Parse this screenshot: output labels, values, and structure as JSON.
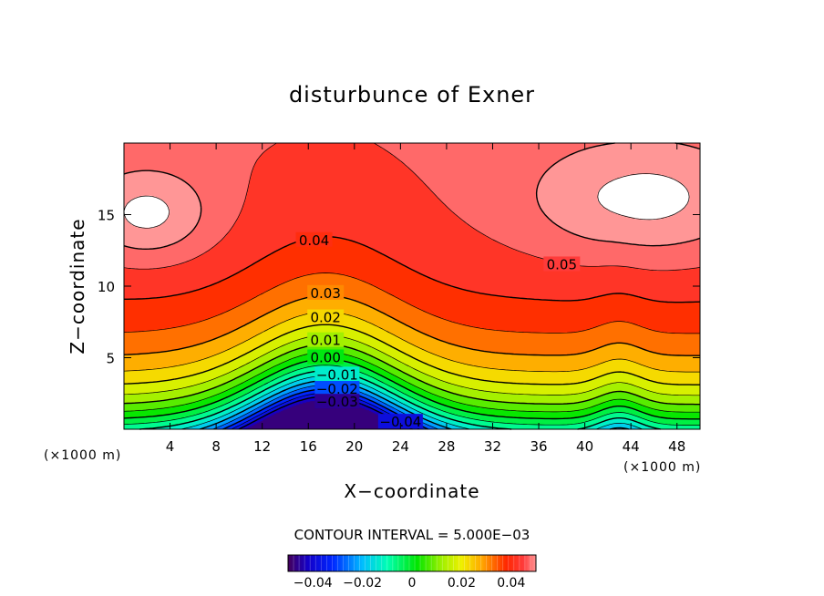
{
  "chart_data": {
    "type": "contour",
    "title": "disturbunce of Exner",
    "xlabel": "X−coordinate",
    "ylabel": "Z−coordinate",
    "x_unit_left": "(×1000 m)",
    "x_unit_right": "(×1000 m)",
    "xlim": [
      0,
      50
    ],
    "ylim": [
      0,
      20
    ],
    "x_ticks": [
      4,
      8,
      12,
      16,
      20,
      24,
      28,
      32,
      36,
      40,
      44,
      48
    ],
    "x_tick_labels": [
      "4",
      "8",
      "12",
      "16",
      "20",
      "24",
      "28",
      "32",
      "36",
      "40",
      "44",
      "48"
    ],
    "y_ticks": [
      5,
      10,
      15
    ],
    "y_tick_labels": [
      "5",
      "10",
      "15"
    ],
    "contour_interval_text": "CONTOUR INTERVAL = 5.000E−03",
    "contour_interval": 0.005,
    "level_range": [
      -0.045,
      0.055
    ],
    "contour_labels": [
      {
        "text": "0.05",
        "x": 38.0,
        "y": 11.5
      },
      {
        "text": "0.04",
        "x": 16.5,
        "y": 13.2
      },
      {
        "text": "0.03",
        "x": 17.5,
        "y": 9.5
      },
      {
        "text": "0.02",
        "x": 17.5,
        "y": 7.8
      },
      {
        "text": "0.01",
        "x": 17.5,
        "y": 6.2
      },
      {
        "text": "0.00",
        "x": 17.5,
        "y": 5.0
      },
      {
        "text": "−0.01",
        "x": 18.5,
        "y": 3.8
      },
      {
        "text": "−0.02",
        "x": 18.5,
        "y": 2.8
      },
      {
        "text": "−0.03",
        "x": 18.5,
        "y": 1.9
      },
      {
        "text": "−0.04",
        "x": 24.0,
        "y": 0.5
      }
    ],
    "colorbar": {
      "tick_labels": [
        "−0.04",
        "−0.02",
        "0",
        "0.02",
        "0.04"
      ],
      "tick_values": [
        -0.04,
        -0.02,
        0,
        0.02,
        0.04
      ],
      "range": [
        -0.05,
        0.05
      ]
    },
    "colormap": "rainbow",
    "grid": false,
    "legend": "colorbar-bottom"
  }
}
